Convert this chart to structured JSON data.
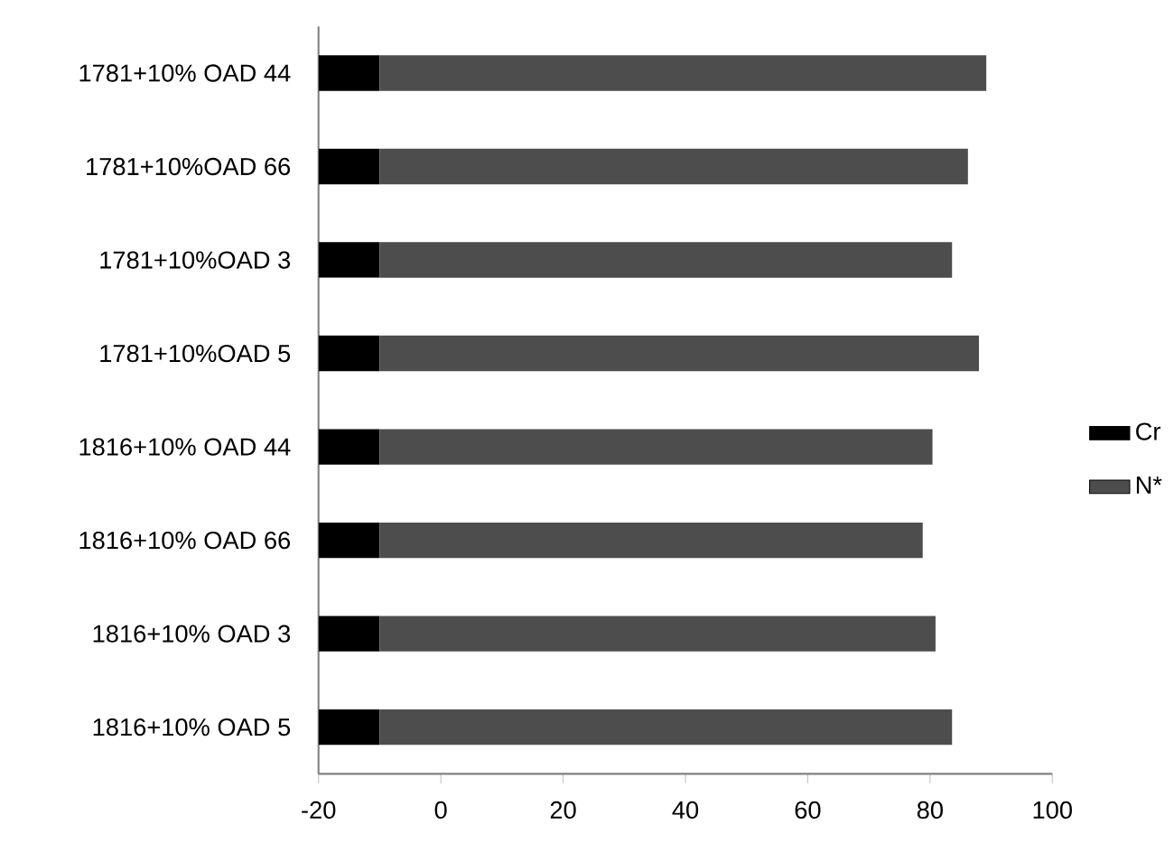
{
  "chart_data": {
    "type": "bar",
    "orientation": "horizontal",
    "categories": [
      "1781+10% OAD 44",
      "1781+10%OAD 66",
      "1781+10%OAD 3",
      "1781+10%OAD 5",
      "1816+10% OAD 44",
      "1816+10% OAD 66",
      "1816+10% OAD 3",
      "1816+10% OAD 5"
    ],
    "series": [
      {
        "name": "Cr",
        "color": "#000000",
        "base": [
          -20,
          -20,
          -20,
          -20,
          -20,
          -20,
          -20,
          -20
        ],
        "values": [
          10,
          10,
          10,
          10,
          10,
          10,
          10,
          10
        ]
      },
      {
        "name": "N*",
        "color": "#4d4d4d",
        "base": [
          -10,
          -10,
          -10,
          -10,
          -10,
          -10,
          -10,
          -10
        ],
        "values": [
          99.2,
          96.2,
          93.6,
          98.0,
          90.4,
          88.8,
          90.9,
          93.6
        ]
      }
    ],
    "xlim": [
      -20,
      100
    ],
    "xticks": [
      -20,
      0,
      20,
      40,
      60,
      80,
      100
    ],
    "legend": "right",
    "grid": false
  }
}
